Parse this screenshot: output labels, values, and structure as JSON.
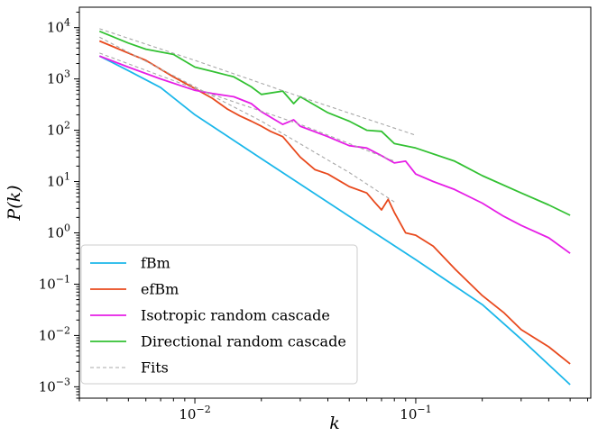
{
  "chart_data": {
    "type": "line",
    "xscale": "log",
    "yscale": "log",
    "xlabel": "k",
    "ylabel": "P(k)",
    "xlim": [
      0.003,
      0.62
    ],
    "ylim": [
      0.0006,
      25000
    ],
    "xticks": [
      {
        "value": 0.01,
        "mantissa": "10",
        "exp": "−2"
      },
      {
        "value": 0.1,
        "mantissa": "10",
        "exp": "−1"
      }
    ],
    "yticks": [
      {
        "value": 10000,
        "mantissa": "10",
        "exp": "4"
      },
      {
        "value": 1000,
        "mantissa": "10",
        "exp": "3"
      },
      {
        "value": 100,
        "mantissa": "10",
        "exp": "2"
      },
      {
        "value": 10,
        "mantissa": "10",
        "exp": "1"
      },
      {
        "value": 1,
        "mantissa": "10",
        "exp": "0"
      },
      {
        "value": 0.1,
        "mantissa": "10",
        "exp": "−1"
      },
      {
        "value": 0.01,
        "mantissa": "10",
        "exp": "−2"
      },
      {
        "value": 0.001,
        "mantissa": "10",
        "exp": "−3"
      }
    ],
    "grid": false,
    "legend_position": "lower-left",
    "series": [
      {
        "name": "fBm",
        "color": "#1bb7ea",
        "style": "solid",
        "points": [
          [
            0.0037,
            2800
          ],
          [
            0.005,
            1450
          ],
          [
            0.007,
            680
          ],
          [
            0.01,
            200
          ],
          [
            0.02,
            28
          ],
          [
            0.05,
            2.1
          ],
          [
            0.1,
            0.3
          ],
          [
            0.2,
            0.04
          ],
          [
            0.3,
            0.0085
          ],
          [
            0.5,
            0.0011
          ]
        ]
      },
      {
        "name": "efBm",
        "color": "#e8491d",
        "style": "solid",
        "points": [
          [
            0.0037,
            5500
          ],
          [
            0.005,
            3200
          ],
          [
            0.006,
            2300
          ],
          [
            0.008,
            1100
          ],
          [
            0.01,
            650
          ],
          [
            0.012,
            420
          ],
          [
            0.014,
            260
          ],
          [
            0.016,
            190
          ],
          [
            0.018,
            150
          ],
          [
            0.02,
            120
          ],
          [
            0.022,
            95
          ],
          [
            0.025,
            75
          ],
          [
            0.03,
            30
          ],
          [
            0.035,
            17
          ],
          [
            0.04,
            14
          ],
          [
            0.05,
            8
          ],
          [
            0.06,
            6
          ],
          [
            0.065,
            4
          ],
          [
            0.07,
            2.8
          ],
          [
            0.075,
            4.5
          ],
          [
            0.08,
            2.5
          ],
          [
            0.09,
            1.0
          ],
          [
            0.1,
            0.9
          ],
          [
            0.12,
            0.55
          ],
          [
            0.15,
            0.2
          ],
          [
            0.2,
            0.06
          ],
          [
            0.25,
            0.028
          ],
          [
            0.3,
            0.013
          ],
          [
            0.4,
            0.006
          ],
          [
            0.5,
            0.0028
          ]
        ]
      },
      {
        "name": "Isotropic random cascade",
        "color": "#e61ee6",
        "style": "solid",
        "points": [
          [
            0.0037,
            2800
          ],
          [
            0.005,
            1700
          ],
          [
            0.007,
            1000
          ],
          [
            0.01,
            600
          ],
          [
            0.012,
            520
          ],
          [
            0.015,
            450
          ],
          [
            0.018,
            330
          ],
          [
            0.02,
            230
          ],
          [
            0.025,
            130
          ],
          [
            0.028,
            160
          ],
          [
            0.03,
            120
          ],
          [
            0.04,
            75
          ],
          [
            0.05,
            50
          ],
          [
            0.06,
            45
          ],
          [
            0.07,
            32
          ],
          [
            0.08,
            23
          ],
          [
            0.09,
            25
          ],
          [
            0.1,
            14
          ],
          [
            0.12,
            10
          ],
          [
            0.15,
            7
          ],
          [
            0.2,
            3.8
          ],
          [
            0.25,
            2.1
          ],
          [
            0.3,
            1.4
          ],
          [
            0.4,
            0.8
          ],
          [
            0.5,
            0.4
          ]
        ]
      },
      {
        "name": "Directional random cascade",
        "color": "#33c133",
        "style": "solid",
        "points": [
          [
            0.0037,
            8500
          ],
          [
            0.005,
            5000
          ],
          [
            0.006,
            3800
          ],
          [
            0.008,
            3000
          ],
          [
            0.01,
            1700
          ],
          [
            0.012,
            1400
          ],
          [
            0.015,
            1100
          ],
          [
            0.018,
            700
          ],
          [
            0.02,
            500
          ],
          [
            0.025,
            580
          ],
          [
            0.028,
            330
          ],
          [
            0.03,
            450
          ],
          [
            0.04,
            220
          ],
          [
            0.05,
            150
          ],
          [
            0.06,
            100
          ],
          [
            0.07,
            95
          ],
          [
            0.08,
            55
          ],
          [
            0.1,
            45
          ],
          [
            0.15,
            25
          ],
          [
            0.2,
            13
          ],
          [
            0.3,
            6
          ],
          [
            0.4,
            3.5
          ],
          [
            0.5,
            2.2
          ]
        ]
      },
      {
        "name": "Fits",
        "color": "#a8a8a8",
        "style": "dashed",
        "points": []
      }
    ],
    "fits": [
      {
        "points": [
          [
            0.0037,
            9500
          ],
          [
            0.01,
            2300
          ],
          [
            0.03,
            450
          ],
          [
            0.1,
            80
          ]
        ]
      },
      {
        "points": [
          [
            0.0037,
            3200
          ],
          [
            0.01,
            650
          ],
          [
            0.03,
            130
          ],
          [
            0.08,
            25
          ]
        ]
      },
      {
        "points": [
          [
            0.0037,
            6500
          ],
          [
            0.01,
            700
          ],
          [
            0.02,
            150
          ],
          [
            0.05,
            15
          ],
          [
            0.08,
            4
          ]
        ]
      }
    ]
  }
}
